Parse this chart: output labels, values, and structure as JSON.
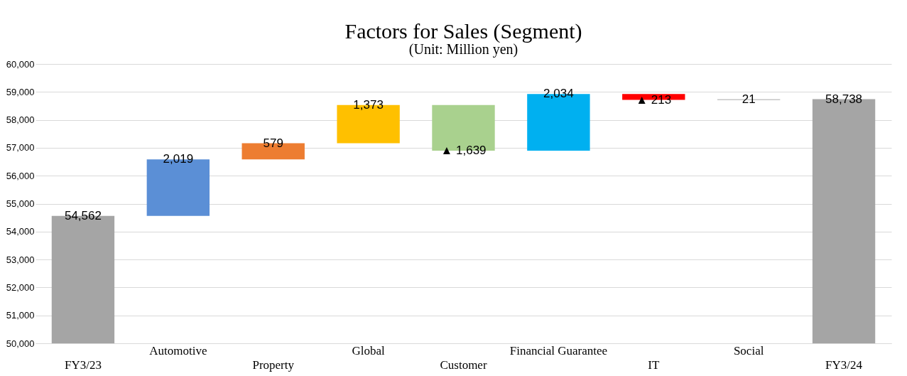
{
  "chart_data": {
    "type": "bar",
    "title": "Factors for Sales (Segment)",
    "subtitle": "(Unit: Million yen)",
    "categories": [
      "FY3/23",
      "Automotive",
      "Property",
      "Global",
      "Customer",
      "Financial Guarantee",
      "IT",
      "Social",
      "FY3/24"
    ],
    "values": [
      54562,
      2019,
      579,
      1373,
      -1639,
      2034,
      -213,
      21,
      58738
    ],
    "base": [
      null,
      54562,
      56581,
      57160,
      58533,
      56894,
      58928,
      58715,
      null
    ],
    "colors": [
      "#a5a5a5",
      "#5b8fd6",
      "#ed7d31",
      "#ffc000",
      "#a9d18e",
      "#00b0f0",
      "#ff0000",
      "#8c8c8c",
      "#a5a5a5"
    ],
    "value_labels": [
      "54,562",
      "2,019",
      "579",
      "1,373",
      "▲ 1,639",
      "2,034",
      "▲ 213",
      "21",
      "58,738"
    ],
    "ylim": [
      50000,
      60000
    ],
    "yticks": [
      {
        "value": 50000,
        "label": "50,000"
      },
      {
        "value": 51000,
        "label": "51,000"
      },
      {
        "value": 52000,
        "label": "52,000"
      },
      {
        "value": 53000,
        "label": "53,000"
      },
      {
        "value": 54000,
        "label": "54,000"
      },
      {
        "value": 55000,
        "label": "55,000"
      },
      {
        "value": 56000,
        "label": "56,000"
      },
      {
        "value": 57000,
        "label": "57,000"
      },
      {
        "value": 58000,
        "label": "58,000"
      },
      {
        "value": 59000,
        "label": "59,000"
      },
      {
        "value": 60000,
        "label": "60,000"
      }
    ],
    "grid": "y"
  }
}
